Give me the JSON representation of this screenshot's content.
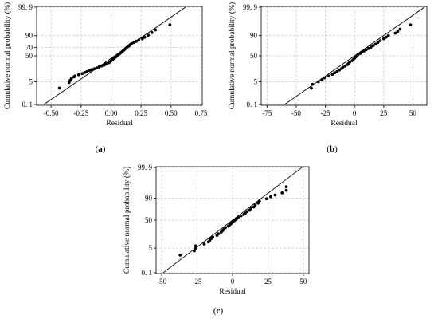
{
  "panels": [
    {
      "id": "a",
      "caption_open": "(",
      "caption_letter": "a",
      "caption_close": ")",
      "chart_data": {
        "type": "scatter",
        "xlabel": "Residual",
        "ylabel": "Cumulative normal probability (%)",
        "x_ticks": [
          "-0.50",
          "-0.25",
          "0.00",
          "0.25",
          "0.50",
          "0.75"
        ],
        "x_tick_values": [
          -0.5,
          -0.25,
          0,
          0.25,
          0.5,
          0.75
        ],
        "xlim": [
          -0.62,
          0.76
        ],
        "y_scale": "normal-probability",
        "y_ticks": [
          "0. 1",
          "5",
          "50",
          "70",
          "90",
          "99. 9"
        ],
        "y_tick_values": [
          0.1,
          5,
          50,
          70,
          90,
          99.9
        ],
        "grid": true,
        "fit_line": {
          "x": [
            -0.56,
            0.62
          ],
          "p": [
            0.1,
            99.9
          ]
        },
        "points": [
          {
            "x": -0.43,
            "p": 2.0
          },
          {
            "x": -0.35,
            "p": 4.5
          },
          {
            "x": -0.34,
            "p": 6.0
          },
          {
            "x": -0.33,
            "p": 7.5
          },
          {
            "x": -0.31,
            "p": 9.0
          },
          {
            "x": -0.3,
            "p": 10.0
          },
          {
            "x": -0.27,
            "p": 11.5
          },
          {
            "x": -0.24,
            "p": 13.0
          },
          {
            "x": -0.22,
            "p": 14.5
          },
          {
            "x": -0.2,
            "p": 16.0
          },
          {
            "x": -0.18,
            "p": 17.5
          },
          {
            "x": -0.16,
            "p": 19.0
          },
          {
            "x": -0.14,
            "p": 20.5
          },
          {
            "x": -0.12,
            "p": 22.0
          },
          {
            "x": -0.1,
            "p": 24.0
          },
          {
            "x": -0.08,
            "p": 26.0
          },
          {
            "x": -0.06,
            "p": 27.5
          },
          {
            "x": -0.05,
            "p": 29.0
          },
          {
            "x": -0.04,
            "p": 31.0
          },
          {
            "x": -0.02,
            "p": 33.0
          },
          {
            "x": -0.01,
            "p": 35.0
          },
          {
            "x": 0.0,
            "p": 37.5
          },
          {
            "x": 0.01,
            "p": 40.0
          },
          {
            "x": 0.02,
            "p": 42.5
          },
          {
            "x": 0.03,
            "p": 45.0
          },
          {
            "x": 0.04,
            "p": 47.5
          },
          {
            "x": 0.05,
            "p": 50.0
          },
          {
            "x": 0.06,
            "p": 52.5
          },
          {
            "x": 0.07,
            "p": 55.0
          },
          {
            "x": 0.08,
            "p": 57.5
          },
          {
            "x": 0.09,
            "p": 60.0
          },
          {
            "x": 0.1,
            "p": 62.5
          },
          {
            "x": 0.11,
            "p": 65.0
          },
          {
            "x": 0.12,
            "p": 67.5
          },
          {
            "x": 0.13,
            "p": 70.0
          },
          {
            "x": 0.14,
            "p": 72.0
          },
          {
            "x": 0.15,
            "p": 74.0
          },
          {
            "x": 0.16,
            "p": 76.0
          },
          {
            "x": 0.17,
            "p": 78.0
          },
          {
            "x": 0.19,
            "p": 80.0
          },
          {
            "x": 0.21,
            "p": 82.0
          },
          {
            "x": 0.23,
            "p": 84.0
          },
          {
            "x": 0.26,
            "p": 86.0
          },
          {
            "x": 0.28,
            "p": 88.0
          },
          {
            "x": 0.31,
            "p": 90.5
          },
          {
            "x": 0.34,
            "p": 93.0
          },
          {
            "x": 0.37,
            "p": 95.0
          },
          {
            "x": 0.49,
            "p": 97.5
          }
        ]
      }
    },
    {
      "id": "b",
      "caption_open": "(",
      "caption_letter": "b",
      "caption_close": ")",
      "chart_data": {
        "type": "scatter",
        "xlabel": "Residual",
        "ylabel": "Cumulative normal probability (%)",
        "x_ticks": [
          "-75",
          "-50",
          "-25",
          "0",
          "25",
          "50"
        ],
        "x_tick_values": [
          -75,
          -50,
          -25,
          0,
          25,
          50
        ],
        "xlim": [
          -80,
          62
        ],
        "y_scale": "normal-probability",
        "y_ticks": [
          "0. 1",
          "5",
          "50",
          "90",
          "99. 9"
        ],
        "y_tick_values": [
          0.1,
          5,
          50,
          90,
          99.9
        ],
        "grid": true,
        "fit_line": {
          "x": [
            -60,
            60
          ],
          "p": [
            0.1,
            99.9
          ]
        },
        "points": [
          {
            "x": -37,
            "p": 2.0
          },
          {
            "x": -36,
            "p": 3.5
          },
          {
            "x": -31,
            "p": 5.0
          },
          {
            "x": -28,
            "p": 6.5
          },
          {
            "x": -26,
            "p": 8.0
          },
          {
            "x": -22,
            "p": 10.0
          },
          {
            "x": -19,
            "p": 12.0
          },
          {
            "x": -17,
            "p": 14.0
          },
          {
            "x": -15,
            "p": 16.0
          },
          {
            "x": -13,
            "p": 18.5
          },
          {
            "x": -11,
            "p": 21.0
          },
          {
            "x": -10,
            "p": 23.5
          },
          {
            "x": -8,
            "p": 26.0
          },
          {
            "x": -6,
            "p": 29.0
          },
          {
            "x": -5,
            "p": 32.0
          },
          {
            "x": -4,
            "p": 35.0
          },
          {
            "x": -2,
            "p": 38.0
          },
          {
            "x": -1,
            "p": 41.0
          },
          {
            "x": 0,
            "p": 44.0
          },
          {
            "x": 1,
            "p": 47.0
          },
          {
            "x": 2,
            "p": 50.0
          },
          {
            "x": 3,
            "p": 53.0
          },
          {
            "x": 5,
            "p": 56.0
          },
          {
            "x": 6,
            "p": 59.0
          },
          {
            "x": 8,
            "p": 62.0
          },
          {
            "x": 10,
            "p": 65.0
          },
          {
            "x": 12,
            "p": 68.0
          },
          {
            "x": 14,
            "p": 71.0
          },
          {
            "x": 16,
            "p": 74.0
          },
          {
            "x": 18,
            "p": 77.0
          },
          {
            "x": 20,
            "p": 80.0
          },
          {
            "x": 22,
            "p": 83.0
          },
          {
            "x": 25,
            "p": 86.0
          },
          {
            "x": 27,
            "p": 88.0
          },
          {
            "x": 29,
            "p": 90.0
          },
          {
            "x": 35,
            "p": 92.5
          },
          {
            "x": 37,
            "p": 94.0
          },
          {
            "x": 39,
            "p": 95.5
          },
          {
            "x": 48,
            "p": 97.5
          }
        ]
      }
    },
    {
      "id": "c",
      "caption_open": "(",
      "caption_letter": "c",
      "caption_close": ")",
      "chart_data": {
        "type": "scatter",
        "xlabel": "Residual",
        "ylabel": "Cumulative normal probability (%)",
        "x_ticks": [
          "-50",
          "-25",
          "0",
          "25",
          "50"
        ],
        "x_tick_values": [
          -50,
          -25,
          0,
          25,
          50
        ],
        "xlim": [
          -54,
          54
        ],
        "y_scale": "normal-probability",
        "y_ticks": [
          "0. 1",
          "5",
          "50",
          "90",
          "99. 9"
        ],
        "y_tick_values": [
          0.1,
          5,
          50,
          90,
          99.9
        ],
        "grid": true,
        "fit_line": {
          "x": [
            -49,
            49
          ],
          "p": [
            0.1,
            99.9
          ]
        },
        "points": [
          {
            "x": -37,
            "p": 2.0
          },
          {
            "x": -27,
            "p": 3.5
          },
          {
            "x": -26,
            "p": 5.0
          },
          {
            "x": -26,
            "p": 6.5
          },
          {
            "x": -20,
            "p": 8.0
          },
          {
            "x": -17,
            "p": 10.0
          },
          {
            "x": -16,
            "p": 12.0
          },
          {
            "x": -15,
            "p": 14.0
          },
          {
            "x": -14,
            "p": 16.0
          },
          {
            "x": -11,
            "p": 18.5
          },
          {
            "x": -10,
            "p": 21.0
          },
          {
            "x": -8,
            "p": 24.0
          },
          {
            "x": -7,
            "p": 27.0
          },
          {
            "x": -6,
            "p": 30.0
          },
          {
            "x": -5,
            "p": 33.0
          },
          {
            "x": -3,
            "p": 36.0
          },
          {
            "x": -2,
            "p": 39.0
          },
          {
            "x": -1,
            "p": 42.0
          },
          {
            "x": 0,
            "p": 45.0
          },
          {
            "x": 1,
            "p": 48.0
          },
          {
            "x": 2,
            "p": 51.0
          },
          {
            "x": 3,
            "p": 54.0
          },
          {
            "x": 4,
            "p": 57.0
          },
          {
            "x": 6,
            "p": 60.0
          },
          {
            "x": 8,
            "p": 63.0
          },
          {
            "x": 9,
            "p": 66.0
          },
          {
            "x": 10,
            "p": 69.0
          },
          {
            "x": 12,
            "p": 72.0
          },
          {
            "x": 13,
            "p": 75.0
          },
          {
            "x": 15,
            "p": 78.0
          },
          {
            "x": 16,
            "p": 81.0
          },
          {
            "x": 18,
            "p": 84.0
          },
          {
            "x": 19,
            "p": 87.0
          },
          {
            "x": 24,
            "p": 89.5
          },
          {
            "x": 27,
            "p": 91.5
          },
          {
            "x": 30,
            "p": 93.0
          },
          {
            "x": 35,
            "p": 94.5
          },
          {
            "x": 38,
            "p": 96.0
          },
          {
            "x": 38,
            "p": 97.5
          }
        ]
      }
    }
  ]
}
